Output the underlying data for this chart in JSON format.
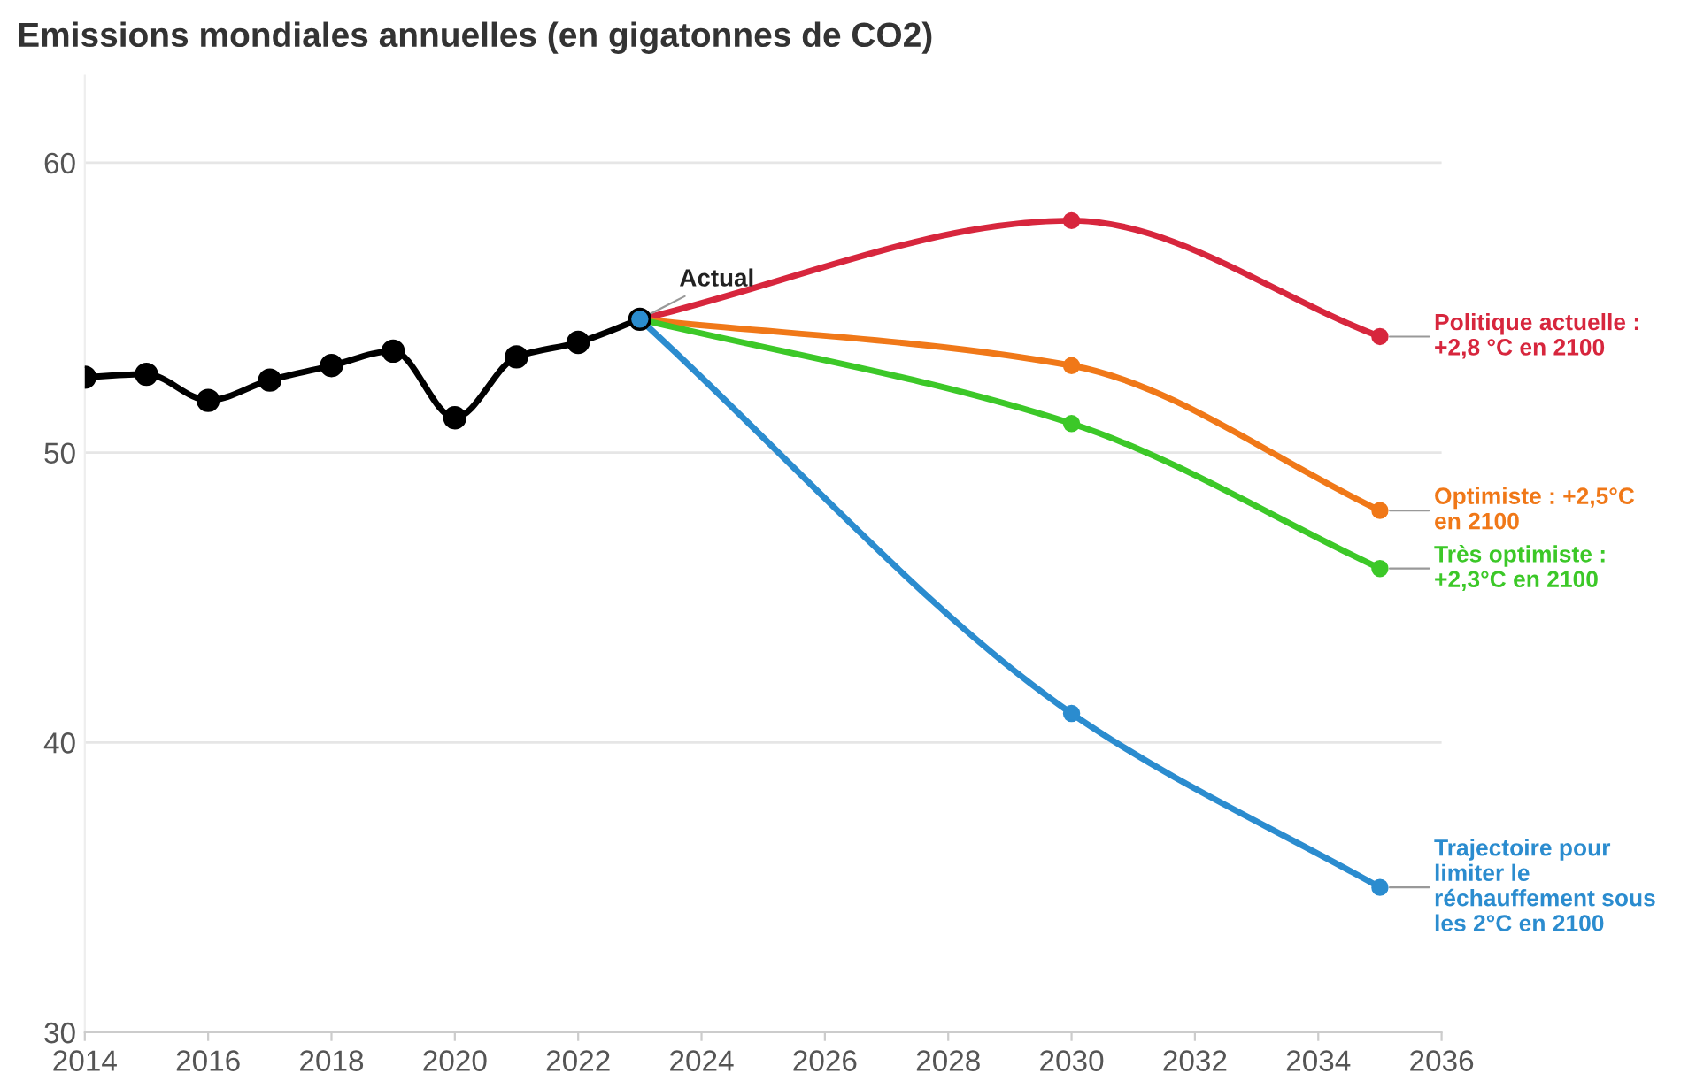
{
  "chart_data": {
    "type": "line",
    "title": "Emissions mondiales annuelles (en gigatonnes de CO2)",
    "series": [
      {
        "color": "#000000",
        "x": [
          2014,
          2015,
          2016,
          2017,
          2018,
          2019,
          2020,
          2021,
          2022,
          2023
        ],
        "values": [
          52.6,
          52.7,
          51.8,
          52.5,
          53.0,
          53.5,
          51.2,
          53.3,
          53.8,
          54.6
        ]
      },
      {
        "name": "Politique actuelle :\n+2,8 °C en 2100",
        "color": "#d7263d",
        "x": [
          2023,
          2030,
          2035
        ],
        "values": [
          54.6,
          58.0,
          54.0
        ]
      },
      {
        "name": "Optimiste : +2,5°C\nen 2100",
        "color": "#f07818",
        "x": [
          2023,
          2030,
          2035
        ],
        "values": [
          54.6,
          53.0,
          48.0
        ]
      },
      {
        "name": "Très optimiste :\n+2,3°C en 2100",
        "color": "#3cc828",
        "x": [
          2023,
          2030,
          2035
        ],
        "values": [
          54.6,
          51.0,
          46.0
        ]
      },
      {
        "name": "Trajectoire pour\nlimiter le\nréchauffement sous\nles 2°C en 2100",
        "color": "#2b8ccf",
        "x": [
          2023,
          2030,
          2035
        ],
        "values": [
          54.6,
          41.0,
          35.0
        ]
      }
    ],
    "annotations": [
      {
        "text": "Actual",
        "x": 2023,
        "y": 54.6
      }
    ],
    "xlim": [
      2014,
      2036
    ],
    "xticks": [
      2014,
      2016,
      2018,
      2020,
      2022,
      2024,
      2026,
      2028,
      2030,
      2032,
      2034,
      2036
    ],
    "ylim": [
      30,
      63
    ],
    "yticks": [
      30,
      40,
      50,
      60
    ],
    "grid": "y",
    "marker": "circle",
    "line_style": "solid",
    "legend": false
  }
}
